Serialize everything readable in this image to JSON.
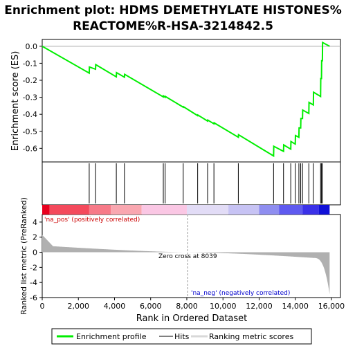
{
  "chart_data": {
    "type": "line",
    "title_lines": [
      "Enrichment plot: HDMS DEMETHYLATE HISTONES%",
      "REACTOME%R-HSA-3214842.5"
    ],
    "es_ylabel": "Enrichment score (ES)",
    "metric_ylabel": "Ranked list metric (PreRanked)",
    "xlabel": "Rank in Ordered Dataset",
    "xlim": [
      0,
      16500
    ],
    "es_ylim": [
      -0.68,
      0.04
    ],
    "metric_ylim": [
      -6,
      5
    ],
    "x_ticks": [
      "0",
      "2,000",
      "4,000",
      "6,000",
      "8,000",
      "10,000",
      "12,000",
      "14,000",
      "16,000"
    ],
    "x_tick_values": [
      0,
      2000,
      4000,
      6000,
      8000,
      10000,
      12000,
      14000,
      16000
    ],
    "es_ticks": [
      "0.0",
      "-0.1",
      "-0.2",
      "-0.3",
      "-0.4",
      "-0.5",
      "-0.6"
    ],
    "es_tick_values": [
      0.0,
      -0.1,
      -0.2,
      -0.3,
      -0.4,
      -0.5,
      -0.6
    ],
    "metric_ticks": [
      "4",
      "2",
      "0",
      "-2",
      "-4",
      "-6"
    ],
    "metric_tick_values": [
      4,
      2,
      0,
      -2,
      -4,
      -6
    ],
    "hits": [
      2600,
      2950,
      4100,
      4550,
      6700,
      6800,
      7800,
      8600,
      9150,
      9500,
      10850,
      12800,
      13350,
      13750,
      14000,
      14200,
      14300,
      14400,
      14750,
      15000,
      15400,
      15450,
      15500
    ],
    "es_curve": {
      "x": [
        0,
        2600,
        2610,
        2950,
        2960,
        4100,
        4110,
        4550,
        4560,
        6700,
        6710,
        6800,
        6810,
        7800,
        7810,
        8600,
        8610,
        9150,
        9160,
        9500,
        9510,
        10850,
        10860,
        12800,
        12810,
        13350,
        13360,
        13750,
        13760,
        14000,
        14010,
        14200,
        14210,
        14300,
        14310,
        14400,
        14410,
        14750,
        14760,
        15000,
        15010,
        15400,
        15410,
        15450,
        15460,
        15500,
        15510,
        15900
      ],
      "y": [
        0.0,
        -0.158,
        -0.122,
        -0.135,
        -0.108,
        -0.18,
        -0.155,
        -0.182,
        -0.165,
        -0.298,
        -0.292,
        -0.3,
        -0.295,
        -0.358,
        -0.355,
        -0.408,
        -0.404,
        -0.44,
        -0.434,
        -0.456,
        -0.45,
        -0.535,
        -0.52,
        -0.645,
        -0.588,
        -0.618,
        -0.58,
        -0.605,
        -0.56,
        -0.575,
        -0.525,
        -0.535,
        -0.48,
        -0.48,
        -0.425,
        -0.425,
        -0.375,
        -0.395,
        -0.33,
        -0.345,
        -0.27,
        -0.295,
        -0.19,
        -0.19,
        -0.085,
        -0.085,
        0.022,
        0.0
      ]
    },
    "zero_cross_label": "Zero cross at 8039",
    "zero_cross": 8039,
    "pos_label": "'na_pos' (positively correlated)",
    "neg_label": "'na_neg' (negatively correlated)",
    "legend": [
      "Enrichment profile",
      "Hits",
      "Ranking metric scores"
    ],
    "colors": {
      "es_line": "#00ee00",
      "hit_line": "#000000",
      "metric_fill": "#b0b0b0",
      "pos_label": "#cc0000",
      "neg_label": "#0000cc",
      "zero_cross_line": "#999999"
    },
    "heat_segments": [
      {
        "start": 0,
        "end": 400,
        "color": "#e8001e"
      },
      {
        "start": 400,
        "end": 2600,
        "color": "#f44a5c"
      },
      {
        "start": 2600,
        "end": 3800,
        "color": "#f77a88"
      },
      {
        "start": 3800,
        "end": 5500,
        "color": "#f9a7b0"
      },
      {
        "start": 5500,
        "end": 8000,
        "color": "#fac7e4"
      },
      {
        "start": 8000,
        "end": 10300,
        "color": "#e2dcf6"
      },
      {
        "start": 10300,
        "end": 12000,
        "color": "#c7c3f4"
      },
      {
        "start": 12000,
        "end": 13100,
        "color": "#8f8ef0"
      },
      {
        "start": 13100,
        "end": 14400,
        "color": "#5f5af0"
      },
      {
        "start": 14400,
        "end": 15300,
        "color": "#3a31e8"
      },
      {
        "start": 15300,
        "end": 15900,
        "color": "#1010d8"
      }
    ]
  }
}
